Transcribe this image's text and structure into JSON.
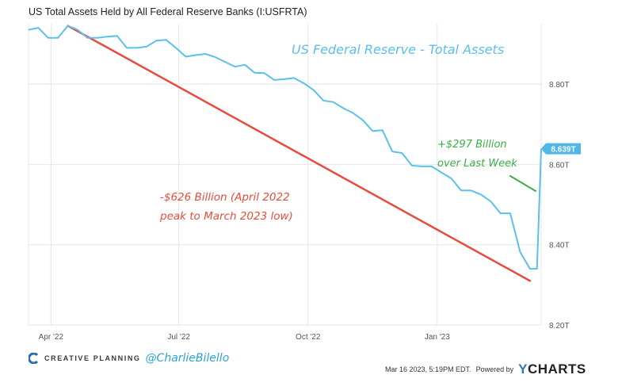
{
  "header": {
    "title": "US Total Assets Held by All Federal Reserve Banks (I:USFRTA)"
  },
  "colors": {
    "series": "#5bc0eb",
    "trend": "#e74c3c",
    "green": "#3cae48",
    "grid": "#e6e6e6",
    "badge": "#4fb8e8"
  },
  "chart_data": {
    "type": "line",
    "x_ticks": [
      "Apr '22",
      "Jul '22",
      "Oct '22",
      "Jan '23"
    ],
    "x_tick_dates": [
      "2022-04-01",
      "2022-07-01",
      "2022-10-01",
      "2023-01-01"
    ],
    "xlim": [
      "2022-03-16",
      "2023-03-16"
    ],
    "y_ticks": [
      "8.20T",
      "8.40T",
      "8.60T",
      "8.80T"
    ],
    "y_tick_values": [
      8.2,
      8.4,
      8.6,
      8.8
    ],
    "ylim": [
      8.2,
      8.95
    ],
    "grid": true,
    "series": [
      {
        "values": [
          [
            "2022-03-16",
            8.935
          ],
          [
            "2022-03-23",
            8.94
          ],
          [
            "2022-03-30",
            8.915
          ],
          [
            "2022-04-06",
            8.915
          ],
          [
            "2022-04-13",
            8.945
          ],
          [
            "2022-04-20",
            8.935
          ],
          [
            "2022-04-27",
            8.915
          ],
          [
            "2022-05-04",
            8.915
          ],
          [
            "2022-05-11",
            8.918
          ],
          [
            "2022-05-18",
            8.92
          ],
          [
            "2022-05-25",
            8.89
          ],
          [
            "2022-06-01",
            8.89
          ],
          [
            "2022-06-08",
            8.893
          ],
          [
            "2022-06-15",
            8.908
          ],
          [
            "2022-06-22",
            8.91
          ],
          [
            "2022-06-29",
            8.89
          ],
          [
            "2022-07-06",
            8.868
          ],
          [
            "2022-07-13",
            8.872
          ],
          [
            "2022-07-20",
            8.875
          ],
          [
            "2022-07-27",
            8.867
          ],
          [
            "2022-08-03",
            8.855
          ],
          [
            "2022-08-10",
            8.843
          ],
          [
            "2022-08-17",
            8.848
          ],
          [
            "2022-08-24",
            8.828
          ],
          [
            "2022-08-31",
            8.827
          ],
          [
            "2022-09-07",
            8.81
          ],
          [
            "2022-09-14",
            8.812
          ],
          [
            "2022-09-21",
            8.815
          ],
          [
            "2022-09-28",
            8.802
          ],
          [
            "2022-10-05",
            8.785
          ],
          [
            "2022-10-12",
            8.759
          ],
          [
            "2022-10-19",
            8.755
          ],
          [
            "2022-10-26",
            8.74
          ],
          [
            "2022-11-02",
            8.728
          ],
          [
            "2022-11-09",
            8.71
          ],
          [
            "2022-11-16",
            8.683
          ],
          [
            "2022-11-23",
            8.685
          ],
          [
            "2022-11-30",
            8.632
          ],
          [
            "2022-12-07",
            8.628
          ],
          [
            "2022-12-14",
            8.597
          ],
          [
            "2022-12-21",
            8.595
          ],
          [
            "2022-12-28",
            8.595
          ],
          [
            "2023-01-04",
            8.58
          ],
          [
            "2023-01-11",
            8.565
          ],
          [
            "2023-01-18",
            8.535
          ],
          [
            "2023-01-25",
            8.535
          ],
          [
            "2023-02-01",
            8.525
          ],
          [
            "2023-02-08",
            8.508
          ],
          [
            "2023-02-15",
            8.478
          ],
          [
            "2023-02-22",
            8.478
          ],
          [
            "2023-03-01",
            8.382
          ],
          [
            "2023-03-08",
            8.34
          ],
          [
            "2023-03-13",
            8.34
          ],
          [
            "2023-03-16",
            8.639
          ]
        ]
      }
    ],
    "trend_line": {
      "from": [
        "2022-04-13",
        8.945
      ],
      "to": [
        "2023-03-08",
        8.31
      ]
    },
    "badge": "8.639T",
    "annotations": {
      "title": "US Federal Reserve - Total Assets",
      "decline_line1": "-$626 Billion (April 2022",
      "decline_line2": "peak to March 2023 low)",
      "gain_line1": "+$297 Billion",
      "gain_line2": "over Last Week"
    }
  },
  "footer": {
    "brand": "CREATIVE PLANNING",
    "handle": "@CharlieBilello",
    "timestamp": "Mar 16 2023, 5:19PM EDT.",
    "powered_by": "Powered by",
    "logo_y": "Y",
    "logo_rest": "CHARTS"
  }
}
